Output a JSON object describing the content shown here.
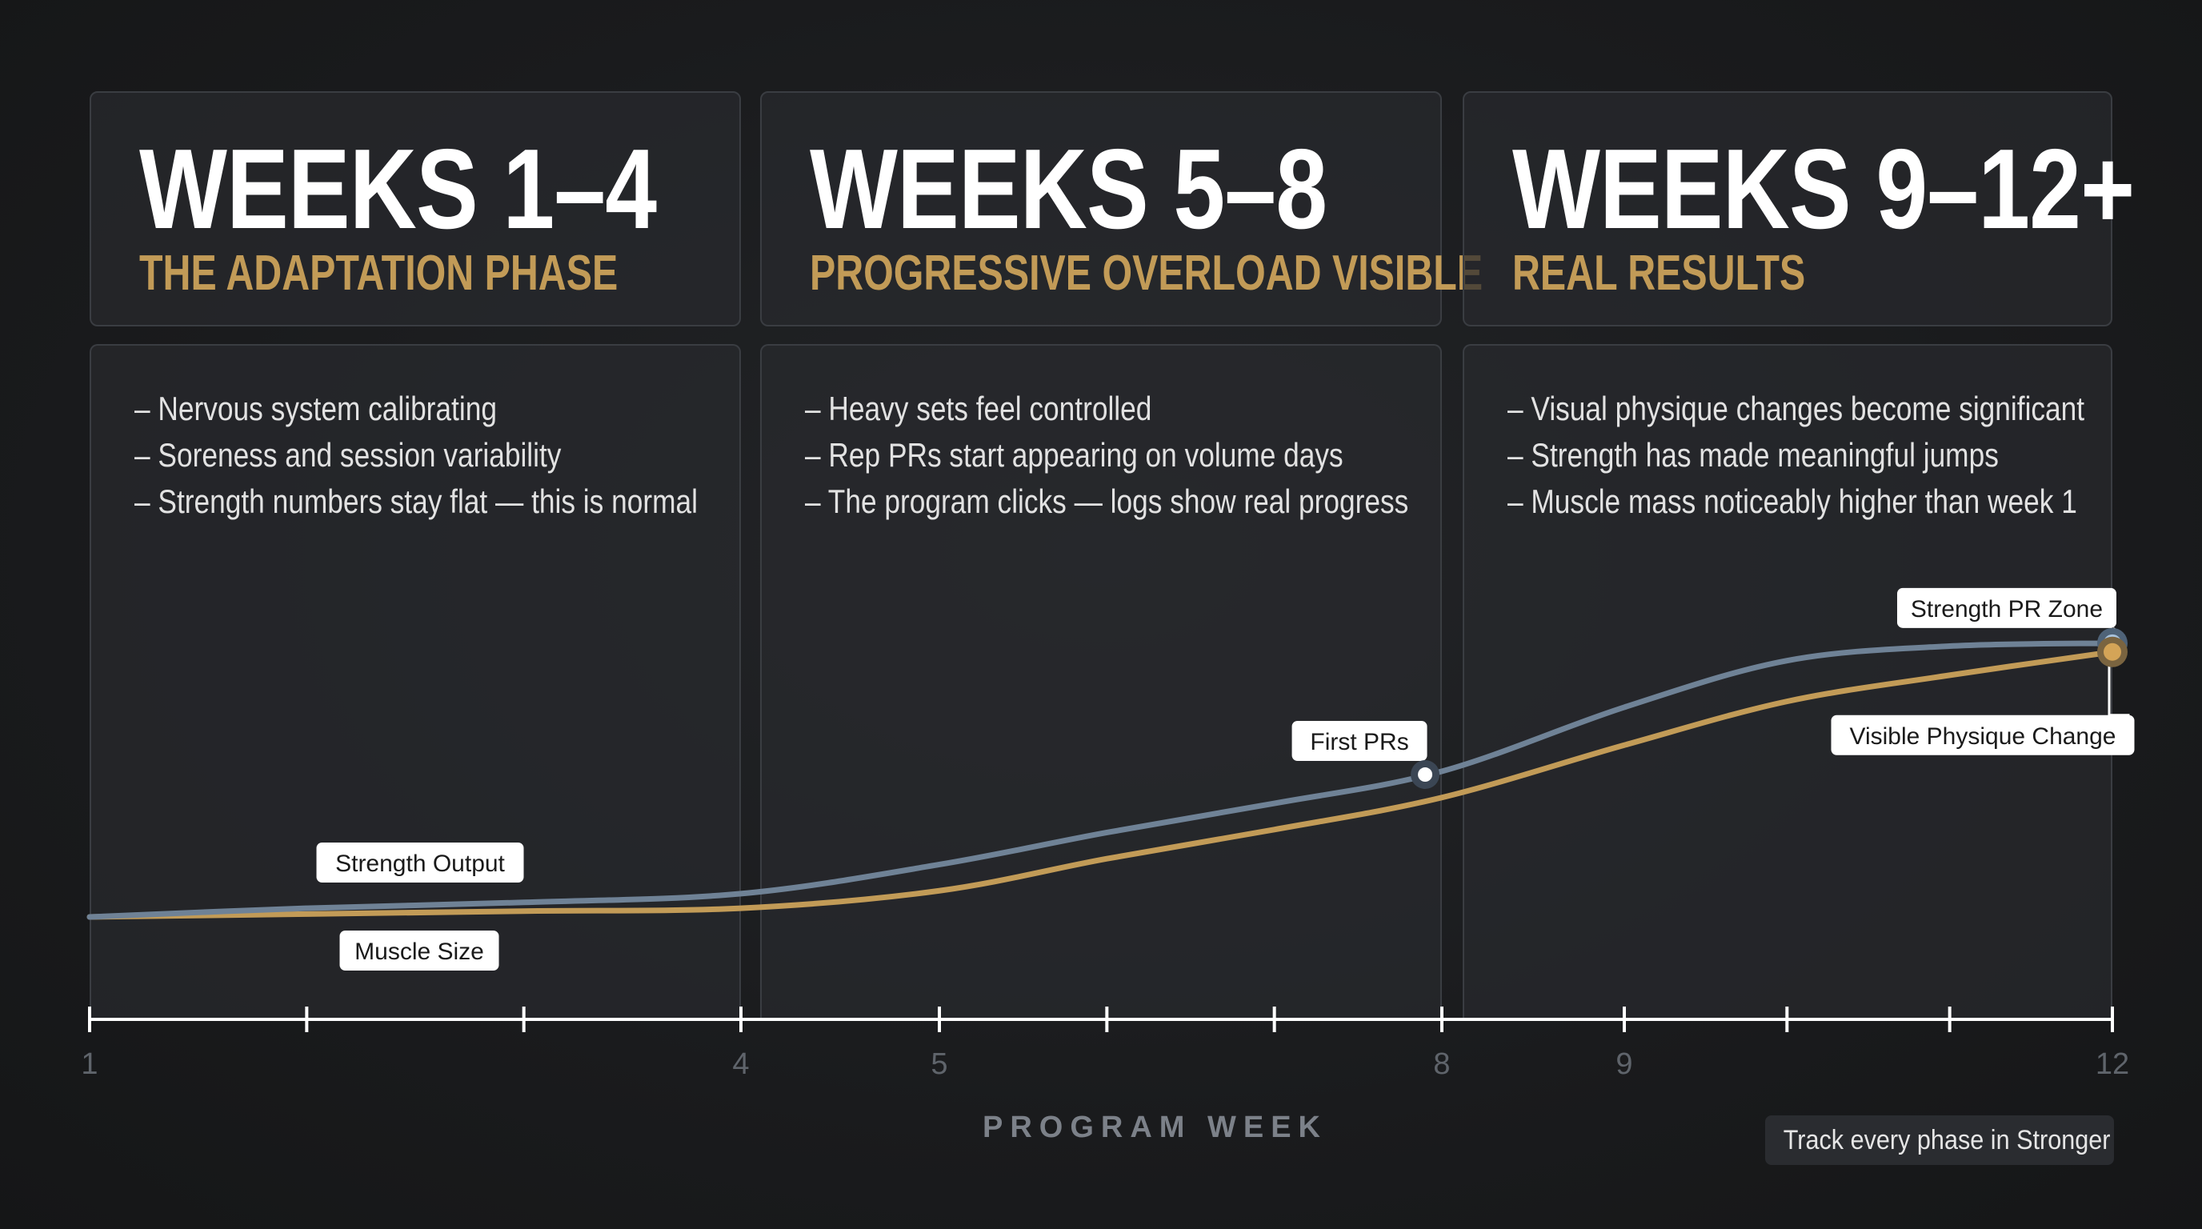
{
  "phases": [
    {
      "title": "WEEKS 1–4",
      "subtitle": "THE ADAPTATION PHASE",
      "bullets": [
        "– Nervous system calibrating",
        "– Soreness and session variability",
        "– Strength numbers stay flat — this is normal"
      ]
    },
    {
      "title": "WEEKS 5–8",
      "subtitle": "PROGRESSIVE OVERLOAD VISIBLE",
      "bullets": [
        "– Heavy sets feel controlled",
        "– Rep PRs start appearing on volume days",
        "– The program clicks — logs show real progress"
      ]
    },
    {
      "title": "WEEKS 9–12+",
      "subtitle": "REAL RESULTS",
      "bullets": [
        "– Visual physique changes become significant",
        "– Strength has made meaningful jumps",
        "– Muscle mass noticeably higher than week 1"
      ]
    }
  ],
  "cta": "Track every phase in Stronger",
  "colors": {
    "strength": "#6f8296",
    "muscle": "#c29b57",
    "accent_gold": "#c29b57",
    "axis": "#ffffff",
    "tick_label": "#5f646b"
  },
  "chart_data": {
    "type": "line",
    "xlabel": "PROGRAM WEEK",
    "ylabel": "",
    "xlim": [
      1,
      12
    ],
    "ylim": [
      0,
      100
    ],
    "tick_labels": [
      {
        "x": 1,
        "label": "1"
      },
      {
        "x": 4,
        "label": "4"
      },
      {
        "x": 5,
        "label": "5"
      },
      {
        "x": 8,
        "label": "8"
      },
      {
        "x": 9,
        "label": "9"
      },
      {
        "x": 12,
        "label": "12"
      }
    ],
    "minor_ticks": [
      2,
      3,
      6,
      7,
      10,
      11
    ],
    "series": [
      {
        "name": "Strength Output",
        "color": "#6f8296",
        "points": [
          [
            1,
            0
          ],
          [
            2,
            3
          ],
          [
            3,
            5
          ],
          [
            4,
            8
          ],
          [
            5,
            18
          ],
          [
            6,
            29
          ],
          [
            7,
            39
          ],
          [
            8,
            50
          ],
          [
            9,
            72
          ],
          [
            10,
            88
          ],
          [
            11,
            93
          ],
          [
            12,
            94
          ]
        ]
      },
      {
        "name": "Muscle Size",
        "color": "#c29b57",
        "points": [
          [
            1,
            0
          ],
          [
            2,
            1
          ],
          [
            3,
            2
          ],
          [
            4,
            3
          ],
          [
            5,
            9
          ],
          [
            6,
            20
          ],
          [
            7,
            30
          ],
          [
            8,
            41
          ],
          [
            9,
            59
          ],
          [
            10,
            74
          ],
          [
            11,
            83
          ],
          [
            12,
            91
          ]
        ]
      }
    ],
    "annotations": [
      {
        "text": "First PRs",
        "series": 0,
        "x": 7.9
      },
      {
        "text": "Strength PR Zone",
        "series": 0,
        "x": 12
      },
      {
        "text": "Visible Physique Change",
        "series": 1,
        "x": 12
      }
    ]
  }
}
